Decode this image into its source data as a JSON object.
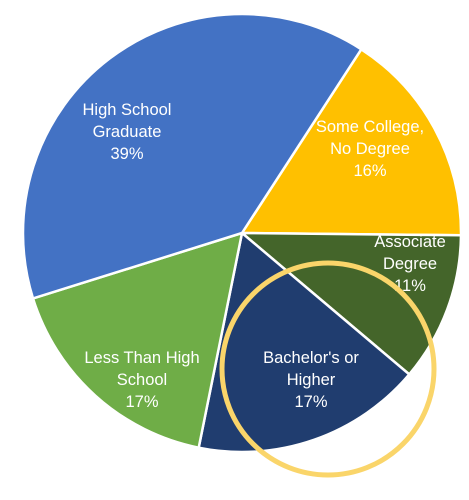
{
  "chart_data": {
    "type": "pie",
    "slices": [
      {
        "label_lines": [
          "Some College,",
          "No Degree"
        ],
        "percent_label": "16%",
        "value": 16,
        "color": "#ffc000"
      },
      {
        "label_lines": [
          "Associate",
          "Degree"
        ],
        "percent_label": "11%",
        "value": 11,
        "color": "#44652a"
      },
      {
        "label_lines": [
          "Bachelor's or",
          "Higher"
        ],
        "percent_label": "17%",
        "value": 17,
        "color": "#203d6f"
      },
      {
        "label_lines": [
          "Less Than High",
          "School"
        ],
        "percent_label": "17%",
        "value": 17,
        "color": "#6fad47"
      },
      {
        "label_lines": [
          "High School",
          "Graduate"
        ],
        "percent_label": "39%",
        "value": 39,
        "color": "#4372c4"
      }
    ],
    "highlight": {
      "target": "Bachelor's or Higher",
      "shape": "circle",
      "color": "#fad56a"
    }
  }
}
